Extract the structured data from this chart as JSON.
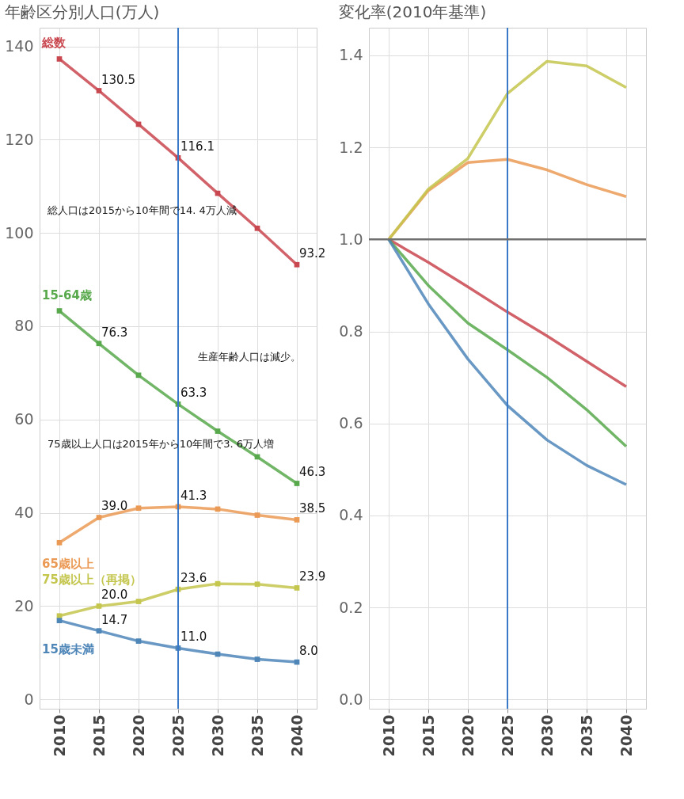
{
  "chart_data": [
    {
      "type": "line",
      "title": "年齢区分別人口(万人)",
      "categories": [
        "2010",
        "2015",
        "2020",
        "2025",
        "2030",
        "2035",
        "2040"
      ],
      "series": [
        {
          "name": "総数",
          "color": "#c9474f",
          "values": [
            137.3,
            130.5,
            123.3,
            116.1,
            108.5,
            101.0,
            93.2
          ],
          "value_labels": [
            null,
            "130.5",
            null,
            "116.1",
            null,
            null,
            "93.2"
          ]
        },
        {
          "name": "15-64歳",
          "color": "#58a84c",
          "values": [
            83.3,
            76.3,
            69.5,
            63.3,
            57.5,
            52.0,
            46.3
          ],
          "value_labels": [
            null,
            "76.3",
            null,
            "63.3",
            null,
            null,
            "46.3"
          ]
        },
        {
          "name": "65歳以上",
          "color": "#eb9a55",
          "values": [
            33.6,
            39.0,
            41.0,
            41.3,
            40.8,
            39.5,
            38.5
          ],
          "value_labels": [
            null,
            "39.0",
            null,
            "41.3",
            null,
            null,
            "38.5"
          ]
        },
        {
          "name": "75歳以上（再掲）",
          "color": "#c4c64e",
          "values": [
            17.9,
            20.0,
            21.0,
            23.6,
            24.8,
            24.7,
            23.9
          ],
          "value_labels": [
            null,
            "20.0",
            null,
            "23.6",
            null,
            null,
            "23.9"
          ]
        },
        {
          "name": "15歳未満",
          "color": "#4e86b8",
          "values": [
            16.9,
            14.7,
            12.5,
            11.0,
            9.7,
            8.6,
            8.0
          ],
          "value_labels": [
            null,
            "14.7",
            null,
            "11.0",
            null,
            null,
            "8.0"
          ]
        }
      ],
      "ylim": [
        -2,
        144
      ],
      "yticks": [
        0,
        20,
        40,
        60,
        80,
        100,
        120,
        140
      ],
      "grid": true,
      "marker": "square",
      "ref_lines": [
        {
          "axis": "x",
          "value": "2025",
          "color": "#3a78c8"
        }
      ],
      "annotations": [
        "総人口は2015から10年間で14. 4万人減",
        "生産年齢人口は減少。",
        "75歳以上人口は2015年から10年間で3. 6万人増"
      ]
    },
    {
      "type": "line",
      "title": "変化率(2010年基準)",
      "categories": [
        "2010",
        "2015",
        "2020",
        "2025",
        "2030",
        "2035",
        "2040"
      ],
      "series": [
        {
          "color": "#c9474f",
          "values": [
            1.0,
            0.95,
            0.897,
            0.842,
            0.79,
            0.735,
            0.68
          ]
        },
        {
          "color": "#58a84c",
          "values": [
            1.0,
            0.9,
            0.818,
            0.76,
            0.7,
            0.63,
            0.55
          ]
        },
        {
          "color": "#eb9a55",
          "values": [
            1.0,
            1.106,
            1.167,
            1.174,
            1.151,
            1.119,
            1.093
          ]
        },
        {
          "color": "#c4c64e",
          "values": [
            1.0,
            1.109,
            1.176,
            1.317,
            1.387,
            1.377,
            1.33
          ]
        },
        {
          "color": "#4e86b8",
          "values": [
            1.0,
            0.86,
            0.74,
            0.639,
            0.564,
            0.509,
            0.467
          ]
        }
      ],
      "ylim": [
        -0.02,
        1.46
      ],
      "yticks": [
        {
          "value": 0,
          "label": "0.0"
        },
        0.2,
        0.4,
        0.6,
        0.8,
        {
          "value": 1,
          "label": "1.0"
        },
        1.2,
        1.4
      ],
      "grid": true,
      "ref_lines": [
        {
          "axis": "x",
          "value": "2025",
          "color": "#3a78c8"
        },
        {
          "axis": "y",
          "value": 1.0,
          "color": "#707070"
        }
      ]
    }
  ]
}
